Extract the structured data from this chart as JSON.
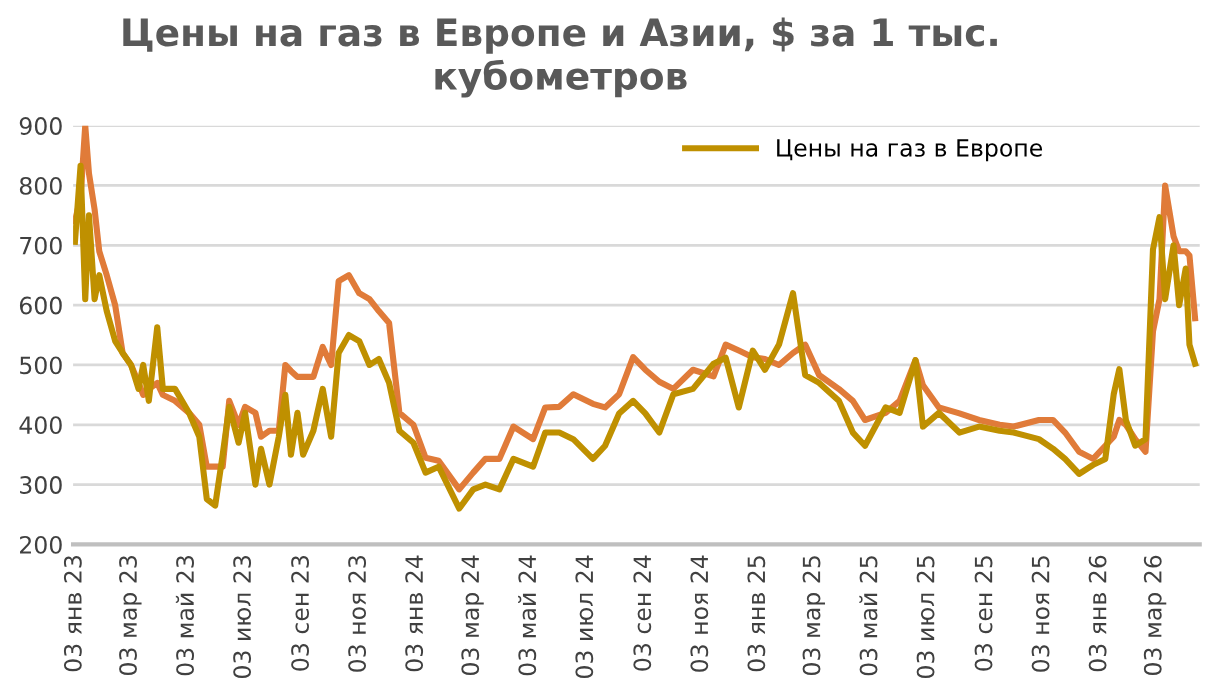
{
  "chart_data": {
    "type": "line",
    "title": "Цены на газ в Европе и Азии, $ за 1 тыс. кубометров",
    "x": [
      "2023-01-03",
      "2023-01-09",
      "2023-01-14",
      "2023-01-18",
      "2023-01-24",
      "2023-01-29",
      "2023-02-06",
      "2023-02-15",
      "2023-02-23",
      "2023-03-04",
      "2023-03-12",
      "2023-03-17",
      "2023-03-23",
      "2023-04-01",
      "2023-04-07",
      "2023-04-20",
      "2023-05-05",
      "2023-05-16",
      "2023-05-24",
      "2023-06-02",
      "2023-06-10",
      "2023-06-17",
      "2023-06-27",
      "2023-07-04",
      "2023-07-15",
      "2023-07-21",
      "2023-07-30",
      "2023-08-09",
      "2023-08-16",
      "2023-08-22",
      "2023-08-29",
      "2023-09-04",
      "2023-09-15",
      "2023-09-25",
      "2023-10-04",
      "2023-10-12",
      "2023-10-23",
      "2023-11-03",
      "2023-11-14",
      "2023-11-24",
      "2023-12-05",
      "2023-12-16",
      "2023-12-31",
      "2024-01-13",
      "2024-01-27",
      "2024-02-18",
      "2024-03-04",
      "2024-03-17",
      "2024-04-01",
      "2024-04-16",
      "2024-05-07",
      "2024-05-20",
      "2024-06-04",
      "2024-06-19",
      "2024-07-10",
      "2024-07-23",
      "2024-08-07",
      "2024-08-22",
      "2024-09-04",
      "2024-09-19",
      "2024-10-04",
      "2024-10-25",
      "2024-11-16",
      "2024-11-29",
      "2024-12-13",
      "2024-12-28",
      "2025-01-10",
      "2025-01-25",
      "2025-02-09",
      "2025-02-22",
      "2025-03-09",
      "2025-03-30",
      "2025-04-14",
      "2025-04-27",
      "2025-05-19",
      "2025-06-03",
      "2025-06-20",
      "2025-06-28",
      "2025-07-15",
      "2025-08-06",
      "2025-08-27",
      "2025-09-18",
      "2025-10-03",
      "2025-10-30",
      "2025-11-14",
      "2025-11-27",
      "2025-12-12",
      "2025-12-27",
      "2026-01-09",
      "2026-01-18",
      "2026-01-24",
      "2026-01-31",
      "2026-02-10",
      "2026-02-21",
      "2026-03-01",
      "2026-03-08",
      "2026-03-14",
      "2026-03-23",
      "2026-03-29",
      "2026-04-05",
      "2026-04-09",
      "2026-04-15"
    ],
    "series": [
      {
        "color": "#e07b39",
        "values": [
          740,
          780,
          900,
          820,
          760,
          690,
          650,
          600,
          520,
          500,
          470,
          450,
          460,
          470,
          450,
          440,
          420,
          400,
          330,
          330,
          330,
          440,
          400,
          430,
          420,
          380,
          390,
          390,
          500,
          490,
          480,
          480,
          480,
          530,
          500,
          640,
          650,
          620,
          610,
          590,
          570,
          420,
          400,
          345,
          340,
          292,
          320,
          343,
          343,
          397,
          376,
          429,
          430,
          451,
          435,
          429,
          451,
          513,
          492,
          472,
          460,
          492,
          481,
          534,
          524,
          513,
          510,
          500,
          520,
          534,
          483,
          460,
          440,
          408,
          420,
          440,
          508,
          466,
          429,
          419,
          408,
          400,
          397,
          408,
          408,
          387,
          355,
          343,
          365,
          380,
          408,
          400,
          376,
          355,
          556,
          610,
          800,
          715,
          690,
          690,
          683,
          578
        ]
      },
      {
        "name": "Цены на газ в Европе",
        "color": "#bf9000",
        "values": [
          706,
          833,
          610,
          750,
          610,
          650,
          590,
          540,
          520,
          500,
          460,
          500,
          440,
          563,
          460,
          460,
          420,
          380,
          276,
          265,
          350,
          430,
          370,
          420,
          300,
          360,
          300,
          380,
          450,
          350,
          420,
          350,
          390,
          460,
          380,
          520,
          550,
          540,
          500,
          510,
          470,
          390,
          370,
          320,
          330,
          260,
          292,
          300,
          292,
          343,
          330,
          387,
          387,
          376,
          343,
          365,
          419,
          440,
          419,
          387,
          451,
          460,
          502,
          512,
          429,
          524,
          492,
          534,
          620,
          483,
          470,
          440,
          387,
          365,
          429,
          420,
          508,
          397,
          420,
          387,
          397,
          390,
          387,
          376,
          360,
          343,
          318,
          333,
          343,
          451,
          493,
          408,
          365,
          376,
          693,
          747,
          610,
          700,
          600,
          661,
          534,
          502
        ]
      }
    ],
    "xlim": [
      "2023-01-01",
      "2026-04-20"
    ],
    "xticks": [
      {
        "value": "2023-01-03",
        "label": "03 янв 23"
      },
      {
        "value": "2023-03-03",
        "label": "03 мар 23"
      },
      {
        "value": "2023-05-03",
        "label": "03 май 23"
      },
      {
        "value": "2023-07-03",
        "label": "03 июл 23"
      },
      {
        "value": "2023-09-03",
        "label": "03 сен 23"
      },
      {
        "value": "2023-11-03",
        "label": "03 ноя 23"
      },
      {
        "value": "2024-01-03",
        "label": "03 янв 24"
      },
      {
        "value": "2024-03-03",
        "label": "03 мар 24"
      },
      {
        "value": "2024-05-03",
        "label": "03 май 24"
      },
      {
        "value": "2024-07-03",
        "label": "03 июл 24"
      },
      {
        "value": "2024-09-03",
        "label": "03 сен 24"
      },
      {
        "value": "2024-11-03",
        "label": "03 ноя 24"
      },
      {
        "value": "2025-01-03",
        "label": "03 янв 25"
      },
      {
        "value": "2025-03-03",
        "label": "03 мар 25"
      },
      {
        "value": "2025-05-03",
        "label": "03 май 25"
      },
      {
        "value": "2025-07-03",
        "label": "03 июл 25"
      },
      {
        "value": "2025-09-03",
        "label": "03 сен 25"
      },
      {
        "value": "2025-11-03",
        "label": "03 ноя 25"
      },
      {
        "value": "2026-01-03",
        "label": "03 янв 26"
      },
      {
        "value": "2026-03-03",
        "label": "03 мар 26"
      }
    ],
    "ylim": [
      200,
      900
    ],
    "yticks": [
      200,
      300,
      400,
      500,
      600,
      700,
      800,
      900
    ],
    "grid": "y",
    "legend": "top right",
    "line_style": "solid"
  }
}
